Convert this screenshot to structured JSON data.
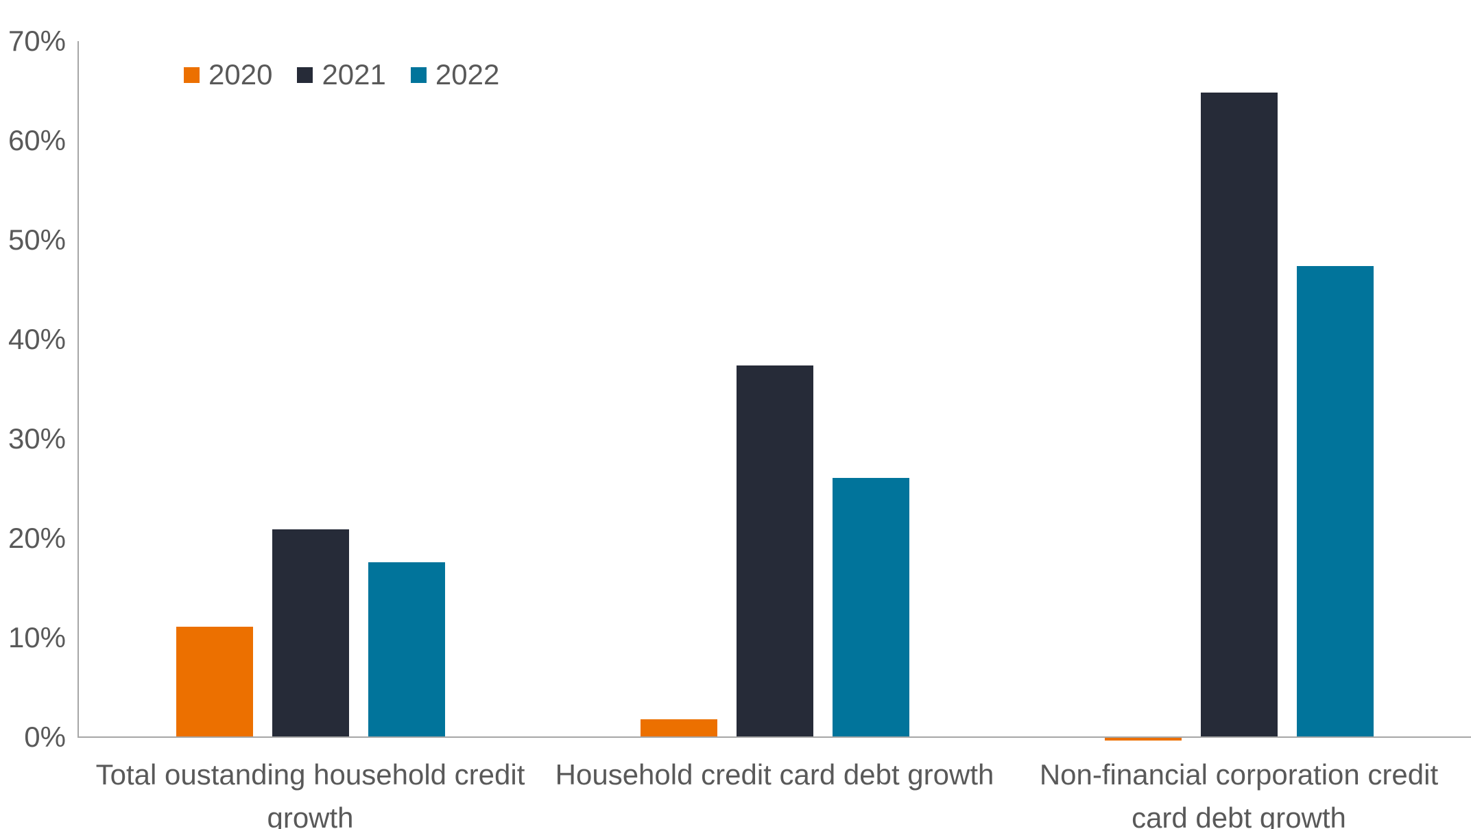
{
  "chart_data": {
    "type": "bar",
    "categories": [
      "Total oustanding household credit growth",
      "Household credit card debt growth",
      "Non-financial corporation credit card debt growth"
    ],
    "series": [
      {
        "name": "2020",
        "color": "#ec7000",
        "values": [
          11.1,
          1.8,
          -0.3
        ]
      },
      {
        "name": "2021",
        "color": "#262b38",
        "values": [
          20.9,
          37.4,
          64.8
        ]
      },
      {
        "name": "2022",
        "color": "#01749b",
        "values": [
          17.6,
          26.1,
          47.4
        ]
      }
    ],
    "title": "",
    "xlabel": "",
    "ylabel": "",
    "ylim": [
      0,
      70
    ],
    "ytick_step": 10,
    "y_tick_labels": [
      "0%",
      "10%",
      "20%",
      "30%",
      "40%",
      "50%",
      "60%",
      "70%"
    ],
    "grid": false,
    "legend_position": "top-left",
    "legend_labels": [
      "2020",
      "2021",
      "2022"
    ],
    "axis_color": "#a6a6a6",
    "text_color": "#595959",
    "background_color": "#ffffff"
  }
}
